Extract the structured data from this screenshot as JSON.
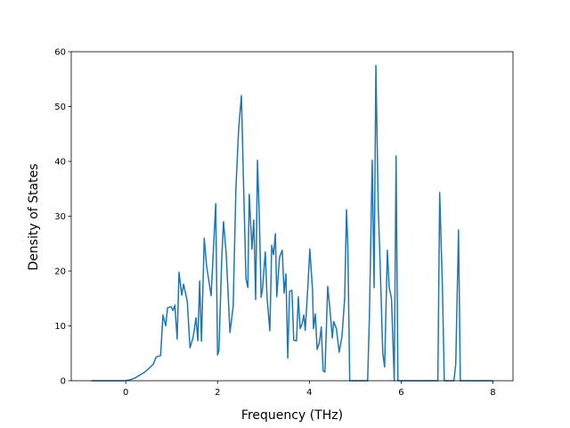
{
  "chart_data": {
    "type": "line",
    "x_label": "Frequency (THz)",
    "y_label": "Density of States",
    "color": "#1f77b4",
    "x": [
      -0.75,
      0,
      0.1,
      0.2,
      0.3,
      0.4,
      0.5,
      0.6,
      0.66,
      0.76,
      0.81,
      0.87,
      0.91,
      0.99,
      1.03,
      1.07,
      1.12,
      1.16,
      1.22,
      1.26,
      1.34,
      1.4,
      1.47,
      1.53,
      1.57,
      1.61,
      1.65,
      1.71,
      1.76,
      1.86,
      1.96,
      2.0,
      2.03,
      2.09,
      2.13,
      2.19,
      2.27,
      2.34,
      2.4,
      2.46,
      2.52,
      2.56,
      2.62,
      2.66,
      2.69,
      2.75,
      2.79,
      2.83,
      2.87,
      2.91,
      2.95,
      2.98,
      3.04,
      3.08,
      3.14,
      3.18,
      3.22,
      3.26,
      3.29,
      3.35,
      3.41,
      3.45,
      3.49,
      3.53,
      3.57,
      3.62,
      3.66,
      3.72,
      3.76,
      3.8,
      3.84,
      3.88,
      3.91,
      3.97,
      4.01,
      4.07,
      4.09,
      4.13,
      4.17,
      4.22,
      4.26,
      4.3,
      4.34,
      4.4,
      4.46,
      4.5,
      4.53,
      4.59,
      4.65,
      4.71,
      4.77,
      4.81,
      4.84,
      4.88,
      5.27,
      5.31,
      5.37,
      5.41,
      5.45,
      5.5,
      5.54,
      5.6,
      5.64,
      5.7,
      5.74,
      5.79,
      5.85,
      5.89,
      5.93,
      6.8,
      6.84,
      6.9,
      6.94,
      7.15,
      7.19,
      7.25,
      7.29,
      8.0
    ],
    "values": [
      0,
      0,
      0.2,
      0.5,
      1,
      1.5,
      2.2,
      3,
      4.3,
      4.6,
      12,
      10,
      13.3,
      13.5,
      12.8,
      13.8,
      7.6,
      19.8,
      15.6,
      17.6,
      14.5,
      6,
      8,
      11.5,
      7.3,
      18.2,
      7.2,
      26,
      21,
      15.5,
      32.3,
      4.7,
      5.5,
      22,
      29,
      23,
      8.8,
      13.5,
      35,
      46,
      52,
      38,
      18.5,
      17,
      34,
      24,
      29.3,
      14.8,
      40.2,
      30,
      15.2,
      16.8,
      23.5,
      15,
      9.1,
      24.7,
      23,
      26.8,
      15.3,
      22.5,
      23.8,
      16,
      19.5,
      4.1,
      16.3,
      16.5,
      7.4,
      7.3,
      15.3,
      9.5,
      10.3,
      12,
      9.2,
      17.5,
      24,
      16.5,
      9.5,
      12.2,
      5.7,
      7,
      9.8,
      1.8,
      1.6,
      17.2,
      12,
      7.8,
      10.8,
      9.5,
      5.2,
      8,
      15,
      31.2,
      24,
      0,
      0,
      12,
      40.2,
      17,
      57.5,
      32,
      22,
      5,
      2.5,
      23.8,
      17,
      15,
      0,
      41,
      0,
      0,
      34.3,
      17,
      0,
      0,
      3,
      27.5,
      0,
      0
    ],
    "xlim": [
      -1.1875,
      8.4375
    ],
    "ylim": [
      0,
      60
    ],
    "xticks": [
      0,
      2,
      4,
      6,
      8
    ],
    "yticks": [
      0,
      10,
      20,
      30,
      40,
      50,
      60
    ]
  }
}
